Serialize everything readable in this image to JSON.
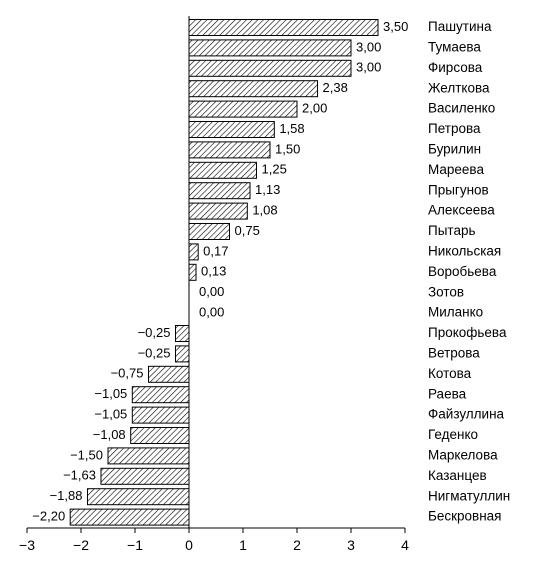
{
  "chart_data": {
    "type": "bar",
    "orientation": "horizontal",
    "categories": [
      "Пашутина",
      "Тумаева",
      "Фирсова",
      "Желткова",
      "Василенко",
      "Петрова",
      "Бурилин",
      "Мареева",
      "Прыгунов",
      "Алексеева",
      "Пытарь",
      "Никольская",
      "Воробьева",
      "Зотов",
      "Миланко",
      "Прокофьева",
      "Ветрова",
      "Котова",
      "Раева",
      "Файзуллина",
      "Геденко",
      "Маркелова",
      "Казанцев",
      "Нигматуллин",
      "Бескровная"
    ],
    "values": [
      3.5,
      3.0,
      3.0,
      2.38,
      2.0,
      1.58,
      1.5,
      1.25,
      1.13,
      1.08,
      0.75,
      0.17,
      0.13,
      0.0,
      0.0,
      -0.25,
      -0.25,
      -0.75,
      -1.05,
      -1.05,
      -1.08,
      -1.5,
      -1.63,
      -1.88,
      -2.2
    ],
    "value_labels": [
      "3,50",
      "3,00",
      "3,00",
      "2,38",
      "2,00",
      "1,58",
      "1,50",
      "1,25",
      "1,13",
      "1,08",
      "0,75",
      "0,17",
      "0,13",
      "0,00",
      "0,00",
      "−0,25",
      "−0,25",
      "−0,75",
      "−1,05",
      "−1,05",
      "−1,08",
      "−1,50",
      "−1,63",
      "−1,88",
      "−2,20"
    ],
    "xlim": [
      -3,
      4
    ],
    "x_ticks": [
      -3,
      -2,
      -1,
      0,
      1,
      2,
      3,
      4
    ],
    "x_tick_labels": [
      "−3",
      "−2",
      "−1",
      "0",
      "1",
      "2",
      "3",
      "4"
    ],
    "bar_fill": "diagonal-hatch",
    "grid": false,
    "title": "",
    "xlabel": "",
    "ylabel": ""
  }
}
